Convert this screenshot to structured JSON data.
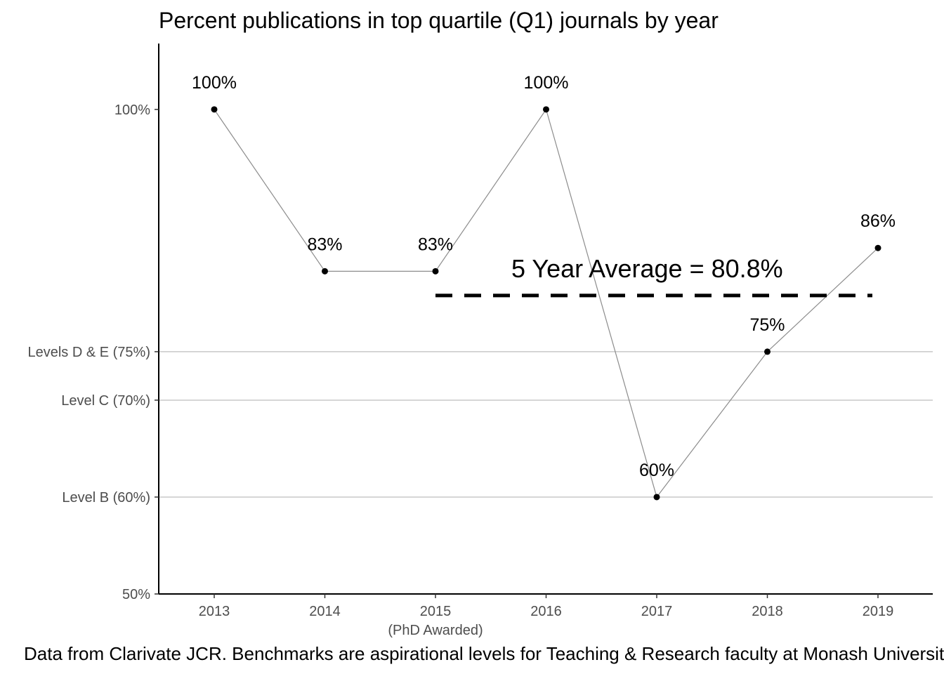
{
  "chart_data": {
    "type": "line",
    "title": "Percent publications in top quartile (Q1) journals by year",
    "x": [
      "2013",
      "2014",
      "2015",
      "2016",
      "2017",
      "2018",
      "2019"
    ],
    "x_sublabels": {
      "2015": "(PhD Awarded)"
    },
    "values": [
      100,
      83.3,
      83.3,
      100,
      60,
      75,
      85.7
    ],
    "data_labels": [
      "100%",
      "83%",
      "83%",
      "100%",
      "60%",
      "75%",
      "86%"
    ],
    "ylim": [
      50,
      106.8
    ],
    "y_ticks": [
      {
        "value": 50,
        "label": "50%"
      },
      {
        "value": 60,
        "label": "Level B (60%)"
      },
      {
        "value": 70,
        "label": "Level C (70%)"
      },
      {
        "value": 75,
        "label": "Levels D & E (75%)"
      },
      {
        "value": 100,
        "label": "100%"
      }
    ],
    "benchmark_lines": [
      60,
      70,
      75
    ],
    "average": {
      "value": 80.8,
      "from": "2015",
      "to": "2019",
      "label": "5 Year Average = 80.8%"
    },
    "caption": "Data from Clarivate JCR. Benchmarks are aspirational levels for Teaching & Research faculty at Monash University",
    "colors": {
      "line": "#8c8c8c",
      "point": "#000000",
      "benchmark": "#c8c8c8",
      "axis": "#000000",
      "average": "#000000"
    },
    "grid": false
  }
}
